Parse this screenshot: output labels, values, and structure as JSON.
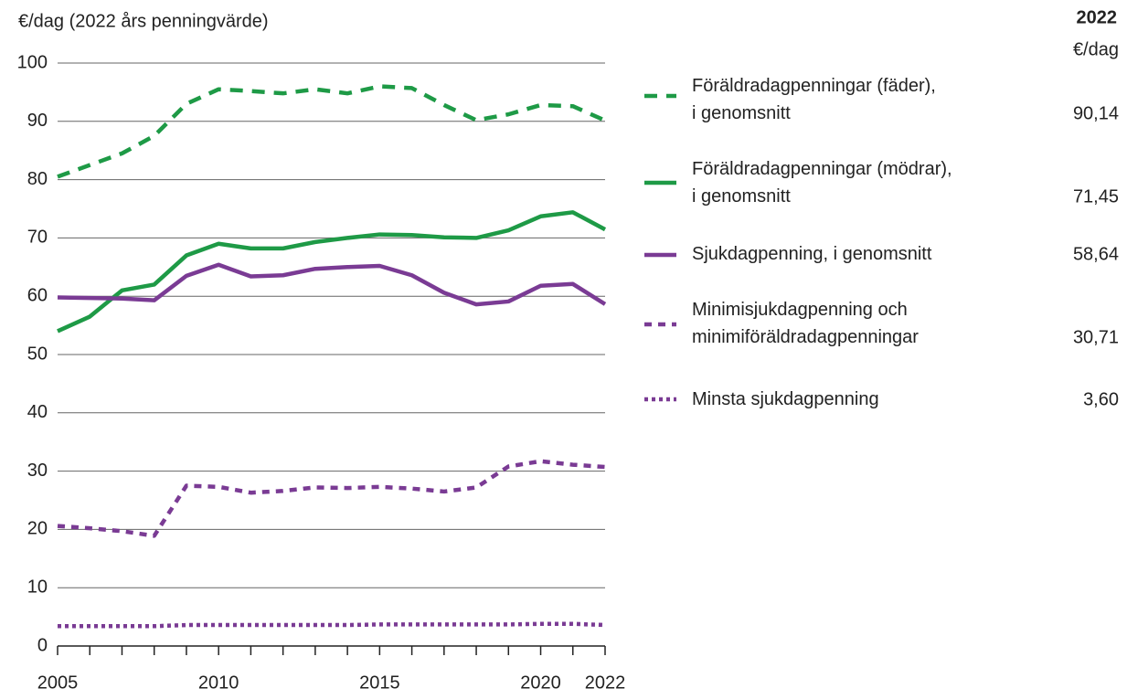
{
  "chart_data": {
    "type": "line",
    "y_axis_label": "€/dag (2022 års penningvärde)",
    "legend_header": "2022",
    "legend_unit": "€/dag",
    "x": [
      2005,
      2006,
      2007,
      2008,
      2009,
      2010,
      2011,
      2012,
      2013,
      2014,
      2015,
      2016,
      2017,
      2018,
      2019,
      2020,
      2021,
      2022
    ],
    "xlim": [
      2005,
      2022
    ],
    "xticks": [
      2005,
      2010,
      2015,
      2020,
      2022
    ],
    "ylim": [
      0,
      100
    ],
    "yticks": [
      0,
      10,
      20,
      30,
      40,
      50,
      60,
      70,
      80,
      90,
      100
    ],
    "grid": true,
    "series": [
      {
        "name": "Föräldradagpenningar (fäder),\ni genomsnitt",
        "color": "#1e9a46",
        "dash": "14 10",
        "value_label": "90,14",
        "values": [
          80.5,
          82.5,
          84.5,
          87.5,
          93,
          95.5,
          95.2,
          94.8,
          95.5,
          94.8,
          96,
          95.7,
          92.8,
          90.2,
          91.2,
          92.8,
          92.6,
          90.14
        ]
      },
      {
        "name": "Föräldradagpenningar (mödrar),\ni genomsnitt",
        "color": "#1e9a46",
        "dash": "none",
        "value_label": "71,45",
        "values": [
          54,
          56.5,
          61,
          62,
          67,
          69,
          68.2,
          68.2,
          69.3,
          70,
          70.6,
          70.5,
          70.1,
          70,
          71.3,
          73.7,
          74.4,
          71.45
        ]
      },
      {
        "name": "Sjukdagpenning, i genomsnitt",
        "color": "#7a3b94",
        "dash": "none",
        "value_label": "58,64",
        "values": [
          59.8,
          59.7,
          59.6,
          59.3,
          63.5,
          65.4,
          63.4,
          63.6,
          64.7,
          65,
          65.2,
          63.6,
          60.6,
          58.6,
          59.1,
          61.8,
          62.1,
          58.64
        ]
      },
      {
        "name": "Minimisjukdagpenning och\nminimiföräldradagpenningar",
        "color": "#7a3b94",
        "dash": "8 7",
        "value_label": "30,71",
        "values": [
          20.6,
          20.2,
          19.7,
          18.9,
          27.5,
          27.3,
          26.3,
          26.6,
          27.2,
          27.1,
          27.3,
          27,
          26.5,
          27.2,
          30.8,
          31.7,
          31.1,
          30.71
        ]
      },
      {
        "name": "Minsta sjukdagpenning",
        "color": "#7a3b94",
        "dash": "4 4",
        "value_label": "3,60",
        "values": [
          3.4,
          3.4,
          3.4,
          3.4,
          3.6,
          3.6,
          3.6,
          3.6,
          3.6,
          3.6,
          3.7,
          3.7,
          3.7,
          3.7,
          3.7,
          3.8,
          3.8,
          3.6
        ]
      }
    ]
  }
}
